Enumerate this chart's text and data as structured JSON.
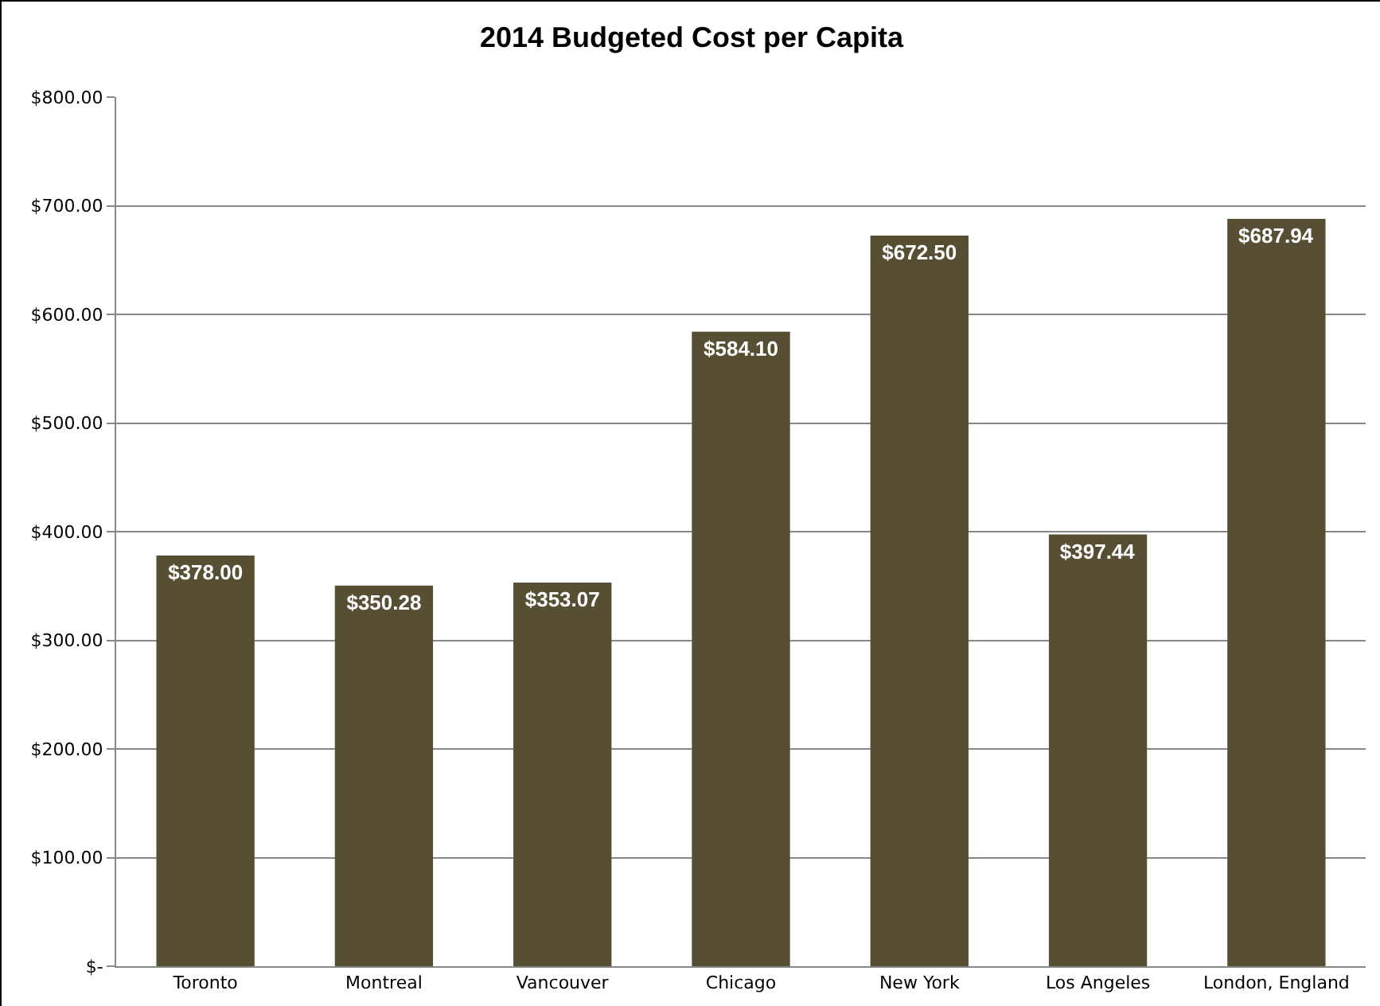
{
  "chart_data": {
    "type": "bar",
    "title": "2014 Budgeted Cost per Capita",
    "categories": [
      "Toronto",
      "Montreal",
      "Vancouver",
      "Chicago",
      "New York",
      "Los Angeles",
      "London, England"
    ],
    "values": [
      378.0,
      350.28,
      353.07,
      584.1,
      672.5,
      397.44,
      687.94
    ],
    "value_labels": [
      "$378.00",
      "$350.28",
      "$353.07",
      "$584.10",
      "$672.50",
      "$397.44",
      "$687.94"
    ],
    "color": "#574f34",
    "ylim": [
      0,
      800
    ],
    "yticks": [
      {
        "value": 0,
        "label": "$-"
      },
      {
        "value": 100,
        "label": "$100.00"
      },
      {
        "value": 200,
        "label": "$200.00"
      },
      {
        "value": 300,
        "label": "$300.00"
      },
      {
        "value": 400,
        "label": "$400.00"
      },
      {
        "value": 500,
        "label": "$500.00"
      },
      {
        "value": 600,
        "label": "$600.00"
      },
      {
        "value": 700,
        "label": "$700.00"
      },
      {
        "value": 800,
        "label": "$800.00"
      }
    ],
    "grid": "y"
  }
}
